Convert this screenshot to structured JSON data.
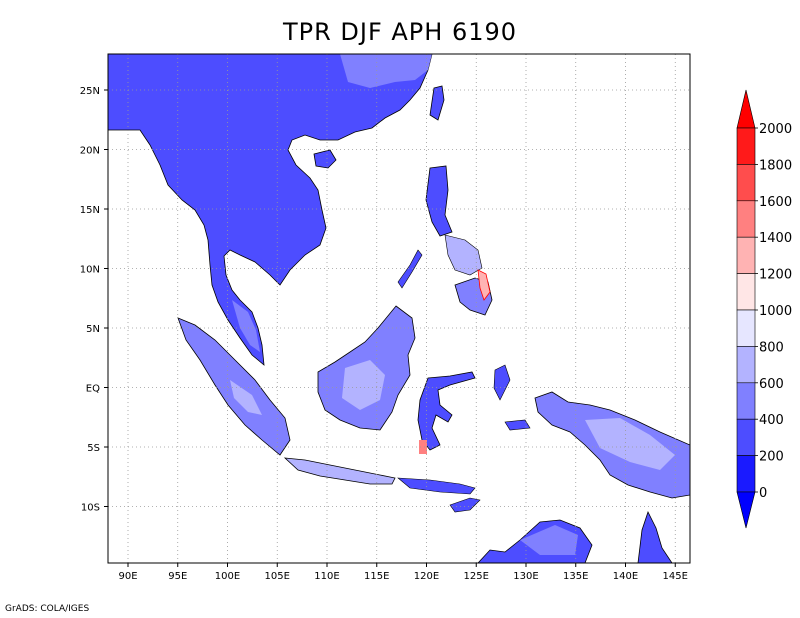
{
  "title": "TPR DJF APH 6190",
  "credit": "GrADS: COLA/IGES",
  "map": {
    "lon_labels": [
      "90E",
      "95E",
      "100E",
      "105E",
      "110E",
      "115E",
      "120E",
      "125E",
      "130E",
      "135E",
      "140E",
      "145E"
    ],
    "lat_labels": [
      "25N",
      "20N",
      "15N",
      "10N",
      "5N",
      "EQ",
      "5S",
      "10S"
    ]
  },
  "colorbar": {
    "labels": [
      "2000",
      "1800",
      "1600",
      "1400",
      "1200",
      "1000",
      "800",
      "600",
      "400",
      "200",
      "0"
    ],
    "colors_top_to_bottom": [
      "#ff1a1a",
      "#ff4d4d",
      "#ff8080",
      "#ffb3b3",
      "#ffe6e6",
      "#e6e6ff",
      "#b3b3ff",
      "#8080ff",
      "#4d4dff",
      "#1a1aff"
    ],
    "arrow_top_color": "#ff0000",
    "arrow_bottom_color": "#0000ff"
  },
  "colors": {
    "frame": "#000000",
    "land_low": "#4d4dff",
    "land_mid": "#8080ff",
    "land_light": "#b3b3ff"
  }
}
